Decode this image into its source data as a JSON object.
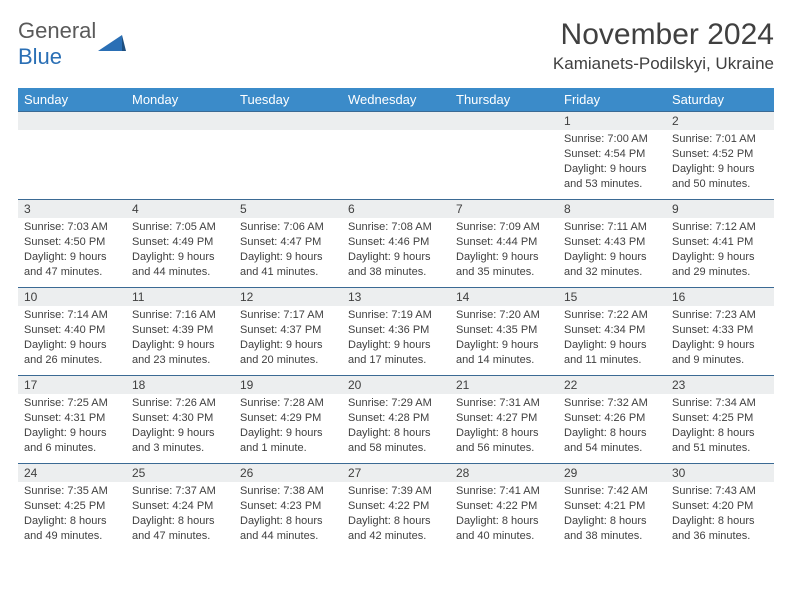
{
  "logo": {
    "general": "General",
    "blue": "Blue"
  },
  "header": {
    "month_title": "November 2024",
    "location": "Kamianets-Podilskyi, Ukraine"
  },
  "colors": {
    "header_bg": "#3b8bc9",
    "header_text": "#ffffff",
    "row_border": "#3b6a94",
    "daynum_bg": "#eceeef",
    "text": "#404040",
    "logo_gray": "#5a5a5a",
    "logo_blue": "#2a6fb5"
  },
  "day_headers": [
    "Sunday",
    "Monday",
    "Tuesday",
    "Wednesday",
    "Thursday",
    "Friday",
    "Saturday"
  ],
  "weeks": [
    [
      {
        "num": "",
        "details": ""
      },
      {
        "num": "",
        "details": ""
      },
      {
        "num": "",
        "details": ""
      },
      {
        "num": "",
        "details": ""
      },
      {
        "num": "",
        "details": ""
      },
      {
        "num": "1",
        "details": "Sunrise: 7:00 AM\nSunset: 4:54 PM\nDaylight: 9 hours and 53 minutes."
      },
      {
        "num": "2",
        "details": "Sunrise: 7:01 AM\nSunset: 4:52 PM\nDaylight: 9 hours and 50 minutes."
      }
    ],
    [
      {
        "num": "3",
        "details": "Sunrise: 7:03 AM\nSunset: 4:50 PM\nDaylight: 9 hours and 47 minutes."
      },
      {
        "num": "4",
        "details": "Sunrise: 7:05 AM\nSunset: 4:49 PM\nDaylight: 9 hours and 44 minutes."
      },
      {
        "num": "5",
        "details": "Sunrise: 7:06 AM\nSunset: 4:47 PM\nDaylight: 9 hours and 41 minutes."
      },
      {
        "num": "6",
        "details": "Sunrise: 7:08 AM\nSunset: 4:46 PM\nDaylight: 9 hours and 38 minutes."
      },
      {
        "num": "7",
        "details": "Sunrise: 7:09 AM\nSunset: 4:44 PM\nDaylight: 9 hours and 35 minutes."
      },
      {
        "num": "8",
        "details": "Sunrise: 7:11 AM\nSunset: 4:43 PM\nDaylight: 9 hours and 32 minutes."
      },
      {
        "num": "9",
        "details": "Sunrise: 7:12 AM\nSunset: 4:41 PM\nDaylight: 9 hours and 29 minutes."
      }
    ],
    [
      {
        "num": "10",
        "details": "Sunrise: 7:14 AM\nSunset: 4:40 PM\nDaylight: 9 hours and 26 minutes."
      },
      {
        "num": "11",
        "details": "Sunrise: 7:16 AM\nSunset: 4:39 PM\nDaylight: 9 hours and 23 minutes."
      },
      {
        "num": "12",
        "details": "Sunrise: 7:17 AM\nSunset: 4:37 PM\nDaylight: 9 hours and 20 minutes."
      },
      {
        "num": "13",
        "details": "Sunrise: 7:19 AM\nSunset: 4:36 PM\nDaylight: 9 hours and 17 minutes."
      },
      {
        "num": "14",
        "details": "Sunrise: 7:20 AM\nSunset: 4:35 PM\nDaylight: 9 hours and 14 minutes."
      },
      {
        "num": "15",
        "details": "Sunrise: 7:22 AM\nSunset: 4:34 PM\nDaylight: 9 hours and 11 minutes."
      },
      {
        "num": "16",
        "details": "Sunrise: 7:23 AM\nSunset: 4:33 PM\nDaylight: 9 hours and 9 minutes."
      }
    ],
    [
      {
        "num": "17",
        "details": "Sunrise: 7:25 AM\nSunset: 4:31 PM\nDaylight: 9 hours and 6 minutes."
      },
      {
        "num": "18",
        "details": "Sunrise: 7:26 AM\nSunset: 4:30 PM\nDaylight: 9 hours and 3 minutes."
      },
      {
        "num": "19",
        "details": "Sunrise: 7:28 AM\nSunset: 4:29 PM\nDaylight: 9 hours and 1 minute."
      },
      {
        "num": "20",
        "details": "Sunrise: 7:29 AM\nSunset: 4:28 PM\nDaylight: 8 hours and 58 minutes."
      },
      {
        "num": "21",
        "details": "Sunrise: 7:31 AM\nSunset: 4:27 PM\nDaylight: 8 hours and 56 minutes."
      },
      {
        "num": "22",
        "details": "Sunrise: 7:32 AM\nSunset: 4:26 PM\nDaylight: 8 hours and 54 minutes."
      },
      {
        "num": "23",
        "details": "Sunrise: 7:34 AM\nSunset: 4:25 PM\nDaylight: 8 hours and 51 minutes."
      }
    ],
    [
      {
        "num": "24",
        "details": "Sunrise: 7:35 AM\nSunset: 4:25 PM\nDaylight: 8 hours and 49 minutes."
      },
      {
        "num": "25",
        "details": "Sunrise: 7:37 AM\nSunset: 4:24 PM\nDaylight: 8 hours and 47 minutes."
      },
      {
        "num": "26",
        "details": "Sunrise: 7:38 AM\nSunset: 4:23 PM\nDaylight: 8 hours and 44 minutes."
      },
      {
        "num": "27",
        "details": "Sunrise: 7:39 AM\nSunset: 4:22 PM\nDaylight: 8 hours and 42 minutes."
      },
      {
        "num": "28",
        "details": "Sunrise: 7:41 AM\nSunset: 4:22 PM\nDaylight: 8 hours and 40 minutes."
      },
      {
        "num": "29",
        "details": "Sunrise: 7:42 AM\nSunset: 4:21 PM\nDaylight: 8 hours and 38 minutes."
      },
      {
        "num": "30",
        "details": "Sunrise: 7:43 AM\nSunset: 4:20 PM\nDaylight: 8 hours and 36 minutes."
      }
    ]
  ]
}
